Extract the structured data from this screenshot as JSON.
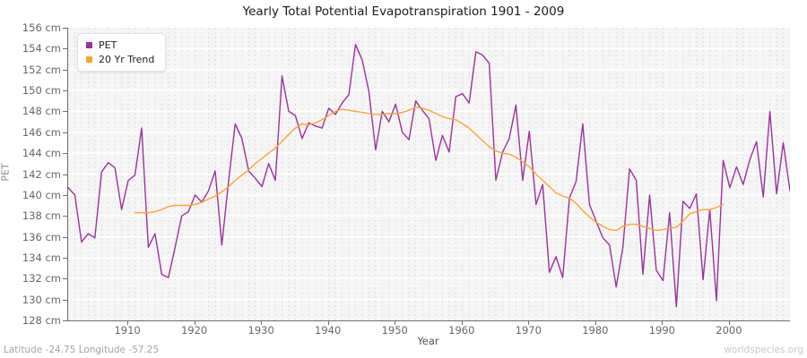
{
  "footer": {
    "left": "Latitude -24.75 Longitude -57.25",
    "right": "worldspecies.org"
  },
  "chart_data": {
    "type": "line",
    "title": "Yearly Total Potential Evapotranspiration 1901 - 2009",
    "xlabel": "Year",
    "ylabel": "PET",
    "ylim": [
      128,
      156
    ],
    "ytick_step": 2,
    "ytick_suffix": " cm",
    "xlim": [
      1901,
      2009
    ],
    "xticks": [
      1910,
      1920,
      1930,
      1940,
      1950,
      1960,
      1970,
      1980,
      1990,
      2000
    ],
    "grid": {
      "vertical": "dashed, one per year",
      "horizontal": "solid white, every 2 cm"
    },
    "legend_position": "top-left",
    "colors": {
      "pet": "#993399",
      "trend": "#FAA332",
      "plot_bg": "#f5f5f5"
    },
    "series": [
      {
        "name": "PET",
        "color": "#993399",
        "x_start": 1901,
        "values": [
          140.7,
          140.0,
          135.5,
          136.3,
          135.9,
          142.2,
          143.1,
          142.6,
          138.6,
          141.4,
          141.9,
          146.4,
          135.0,
          136.3,
          132.4,
          132.1,
          135.0,
          138.0,
          138.4,
          140.0,
          139.3,
          140.4,
          142.3,
          135.2,
          141.3,
          146.8,
          145.4,
          142.3,
          141.6,
          140.8,
          143.0,
          141.4,
          151.4,
          148.0,
          147.6,
          145.4,
          146.9,
          146.6,
          146.4,
          148.3,
          147.7,
          148.8,
          149.6,
          154.4,
          152.9,
          149.9,
          144.3,
          148.0,
          147.0,
          148.7,
          146.0,
          145.3,
          149.0,
          148.1,
          147.3,
          143.3,
          145.7,
          144.1,
          149.4,
          149.7,
          148.8,
          153.7,
          153.4,
          152.6,
          141.4,
          144.1,
          145.4,
          148.6,
          141.4,
          146.1,
          139.1,
          141.0,
          132.6,
          134.1,
          132.1,
          139.7,
          141.3,
          146.8,
          139.1,
          137.5,
          135.9,
          135.2,
          131.2,
          135.0,
          142.5,
          141.4,
          132.4,
          140.0,
          132.8,
          131.8,
          138.3,
          129.3,
          139.4,
          138.7,
          140.1,
          131.9,
          138.6,
          129.9,
          143.3,
          140.7,
          142.7,
          141.0,
          143.4,
          145.1,
          139.8,
          148.0,
          140.1,
          145.0,
          140.4
        ]
      },
      {
        "name": "20 Yr Trend",
        "color": "#FAA332",
        "x_start": 1911,
        "values": [
          138.3,
          138.3,
          138.3,
          138.4,
          138.6,
          138.9,
          139.0,
          139.0,
          139.0,
          139.1,
          139.3,
          139.6,
          139.9,
          140.3,
          140.8,
          141.4,
          141.9,
          142.4,
          143.0,
          143.5,
          144.0,
          144.5,
          145.1,
          145.8,
          146.4,
          146.8,
          146.7,
          146.9,
          147.2,
          147.6,
          148.0,
          148.2,
          148.1,
          148.0,
          147.9,
          147.8,
          147.7,
          147.7,
          147.8,
          147.8,
          147.9,
          148.1,
          148.4,
          148.3,
          148.1,
          147.8,
          147.5,
          147.3,
          147.2,
          146.8,
          146.4,
          145.8,
          145.2,
          144.6,
          144.2,
          144.0,
          143.9,
          143.6,
          143.2,
          142.7,
          142.0,
          141.4,
          140.8,
          140.2,
          139.9,
          139.7,
          139.2,
          138.5,
          137.9,
          137.4,
          137.0,
          136.7,
          136.6,
          137.0,
          137.2,
          137.2,
          137.0,
          136.8,
          136.6,
          136.7,
          136.8,
          136.9,
          137.5,
          138.2,
          138.4,
          138.6,
          138.6,
          138.8,
          139.1
        ]
      }
    ]
  }
}
